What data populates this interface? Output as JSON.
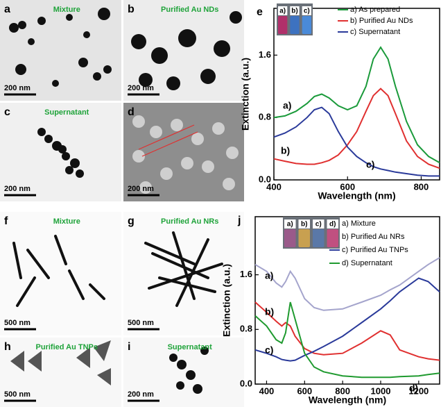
{
  "panels": [
    {
      "label": "a",
      "title": "Mixture",
      "scale": "200 nm"
    },
    {
      "label": "b",
      "title": "Purified Au NDs",
      "scale": "200 nm"
    },
    {
      "label": "c",
      "title": "Supernatant",
      "scale": "200 nm"
    },
    {
      "label": "d",
      "scale": "200 nm"
    },
    {
      "label": "f",
      "title": "Mixture",
      "scale": "500 nm"
    },
    {
      "label": "g",
      "title": "Purified Au NRs",
      "scale": "500 nm"
    },
    {
      "label": "h",
      "title": "Purified Au TNPs",
      "scale": "500 nm"
    },
    {
      "label": "i",
      "title": "Supernatant",
      "scale": "200 nm"
    }
  ],
  "chart_data": [
    {
      "type": "line",
      "panel_label": "e",
      "xlabel": "Wavelength (nm)",
      "ylabel": "Extinction (a.u.)",
      "xlim": [
        400,
        850
      ],
      "ylim": [
        0,
        2.2
      ],
      "xticks": [
        400,
        600,
        800
      ],
      "yticks": [
        {
          "value": 0,
          "label": "0.0"
        },
        0.8,
        1.6
      ],
      "legend": "upper right",
      "inset_labels": [
        "a)",
        "b)",
        "c)"
      ],
      "x": [
        400,
        430,
        460,
        490,
        510,
        530,
        550,
        575,
        600,
        625,
        650,
        670,
        690,
        710,
        730,
        760,
        790,
        820,
        850
      ],
      "series": [
        {
          "name": "a) As prepared",
          "label": "a)",
          "color": "#1a9a3a",
          "values": [
            0.8,
            0.82,
            0.88,
            0.98,
            1.07,
            1.1,
            1.05,
            0.95,
            0.9,
            0.95,
            1.2,
            1.55,
            1.7,
            1.55,
            1.2,
            0.75,
            0.45,
            0.3,
            0.22
          ]
        },
        {
          "name": "b) Purified Au NDs",
          "label": "b)",
          "color": "#e03030",
          "values": [
            0.27,
            0.24,
            0.21,
            0.2,
            0.2,
            0.22,
            0.25,
            0.32,
            0.45,
            0.62,
            0.88,
            1.08,
            1.17,
            1.08,
            0.85,
            0.5,
            0.3,
            0.2,
            0.15
          ]
        },
        {
          "name": "c) Supernatant",
          "label": "c)",
          "color": "#2a3a9a",
          "values": [
            0.55,
            0.6,
            0.68,
            0.8,
            0.9,
            0.93,
            0.85,
            0.62,
            0.42,
            0.3,
            0.22,
            0.17,
            0.14,
            0.12,
            0.1,
            0.08,
            0.06,
            0.05,
            0.05
          ]
        }
      ]
    },
    {
      "type": "line",
      "panel_label": "j",
      "xlabel": "Wavelength (nm)",
      "ylabel": "Extinction (a.u.)",
      "xlim": [
        340,
        1310
      ],
      "ylim": [
        0,
        2.45
      ],
      "xticks": [
        400,
        600,
        800,
        1000,
        1200
      ],
      "yticks": [
        {
          "value": 0,
          "label": "0.0"
        },
        0.8,
        1.6
      ],
      "legend": "upper right",
      "inset_labels": [
        "a)",
        "b)",
        "c)",
        "d)"
      ],
      "x": [
        340,
        400,
        450,
        480,
        500,
        525,
        550,
        600,
        650,
        700,
        800,
        900,
        1000,
        1050,
        1100,
        1200,
        1250,
        1310
      ],
      "series": [
        {
          "name": "a) Mixture",
          "label": "a)",
          "color": "#a4a4cc",
          "values": [
            1.75,
            1.65,
            1.48,
            1.42,
            1.5,
            1.65,
            1.55,
            1.25,
            1.12,
            1.08,
            1.1,
            1.2,
            1.3,
            1.38,
            1.45,
            1.65,
            1.75,
            1.85
          ]
        },
        {
          "name": "b) Purified Au NRs",
          "label": "b)",
          "color": "#e03030",
          "values": [
            1.2,
            1.05,
            0.92,
            0.85,
            0.9,
            0.85,
            0.7,
            0.52,
            0.45,
            0.43,
            0.45,
            0.6,
            0.78,
            0.72,
            0.5,
            0.4,
            0.37,
            0.35
          ]
        },
        {
          "name": "c) Purified Au TNPs",
          "label": "c)",
          "color": "#2a3a9a",
          "values": [
            0.5,
            0.45,
            0.4,
            0.36,
            0.35,
            0.34,
            0.35,
            0.42,
            0.48,
            0.55,
            0.7,
            0.9,
            1.1,
            1.22,
            1.35,
            1.55,
            1.5,
            1.35
          ]
        },
        {
          "name": "d) Supernatant",
          "label": "d)",
          "color": "#1f9a2f",
          "values": [
            1.0,
            0.85,
            0.65,
            0.6,
            0.75,
            1.2,
            0.95,
            0.45,
            0.25,
            0.18,
            0.12,
            0.1,
            0.1,
            0.1,
            0.11,
            0.12,
            0.14,
            0.16
          ]
        }
      ]
    }
  ]
}
